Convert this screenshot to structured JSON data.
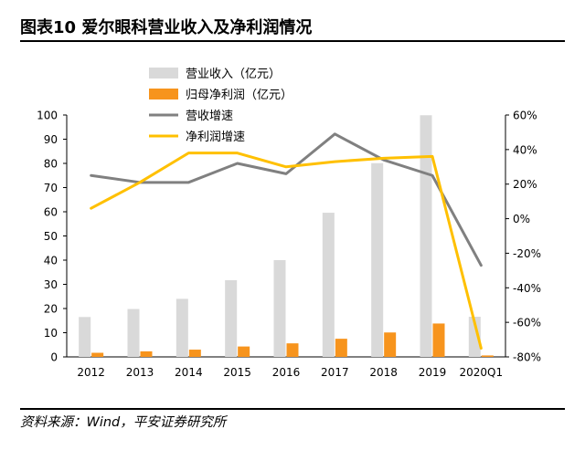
{
  "header": {
    "title": "图表10   爱尔眼科营业收入及净利润情况"
  },
  "footer": {
    "source": "资料来源：Wind，平安证券研究所"
  },
  "chart_data": {
    "type": "bar",
    "categories": [
      "2012",
      "2013",
      "2014",
      "2015",
      "2016",
      "2017",
      "2018",
      "2019",
      "2020Q1"
    ],
    "series": [
      {
        "name": "营业收入（亿元）",
        "kind": "bar",
        "axis": "left",
        "color": "#d9d9d9",
        "values": [
          16.5,
          19.8,
          24.0,
          31.7,
          40.0,
          59.6,
          80.1,
          99.9,
          16.6
        ]
      },
      {
        "name": "归母净利润（亿元）",
        "kind": "bar",
        "axis": "left",
        "color": "#f7941d",
        "values": [
          1.7,
          2.3,
          3.0,
          4.3,
          5.6,
          7.5,
          10.1,
          13.8,
          0.6
        ]
      },
      {
        "name": "营收增速",
        "kind": "line",
        "axis": "right",
        "color": "#808080",
        "values": [
          25,
          21,
          21,
          32,
          26,
          49,
          34,
          25,
          -27
        ]
      },
      {
        "name": "净利润增速",
        "kind": "line",
        "axis": "right",
        "color": "#ffc000",
        "values": [
          6,
          21,
          38,
          38,
          30,
          33,
          35,
          36,
          -75
        ]
      }
    ],
    "left_axis": {
      "min": 0,
      "max": 100,
      "step": 10,
      "ticks": [
        "0",
        "10",
        "20",
        "30",
        "40",
        "50",
        "60",
        "70",
        "80",
        "90",
        "100"
      ]
    },
    "right_axis": {
      "min": -80,
      "max": 60,
      "step": 20,
      "ticks": [
        "-80%",
        "-60%",
        "-40%",
        "-20%",
        "0%",
        "20%",
        "40%",
        "60%"
      ]
    },
    "legend_position": "top-center"
  }
}
